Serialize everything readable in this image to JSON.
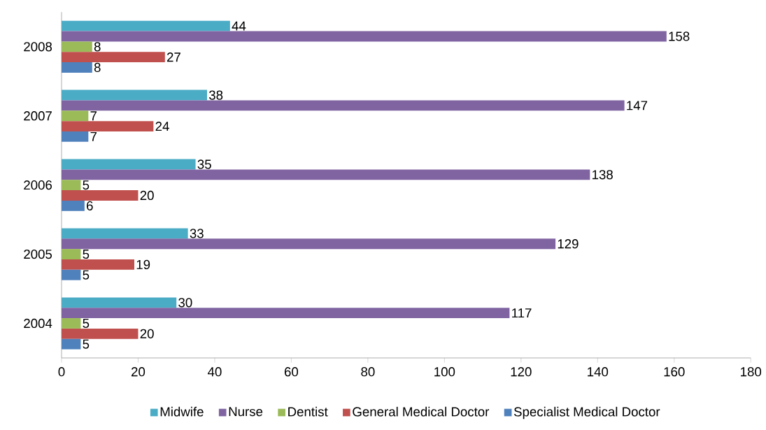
{
  "chart_data": {
    "type": "bar",
    "orientation": "horizontal",
    "categories": [
      "2008",
      "2007",
      "2006",
      "2005",
      "2004"
    ],
    "series": [
      {
        "name": "Midwife",
        "color": "#4bacc6",
        "values": [
          44,
          38,
          35,
          33,
          30
        ]
      },
      {
        "name": "Nurse",
        "color": "#8064a2",
        "values": [
          158,
          147,
          138,
          129,
          117
        ]
      },
      {
        "name": "Dentist",
        "color": "#9bbb59",
        "values": [
          8,
          7,
          5,
          5,
          5
        ]
      },
      {
        "name": "General Medical Doctor",
        "color": "#c0504d",
        "values": [
          27,
          24,
          20,
          19,
          20
        ]
      },
      {
        "name": "Specialist Medical Doctor",
        "color": "#4f81bd",
        "values": [
          8,
          7,
          6,
          5,
          5
        ]
      }
    ],
    "xlim": [
      0,
      180
    ],
    "xticks": [
      0,
      20,
      40,
      60,
      80,
      100,
      120,
      140,
      160,
      180
    ],
    "grid": false,
    "legend": "bottom",
    "data_labels": true
  }
}
